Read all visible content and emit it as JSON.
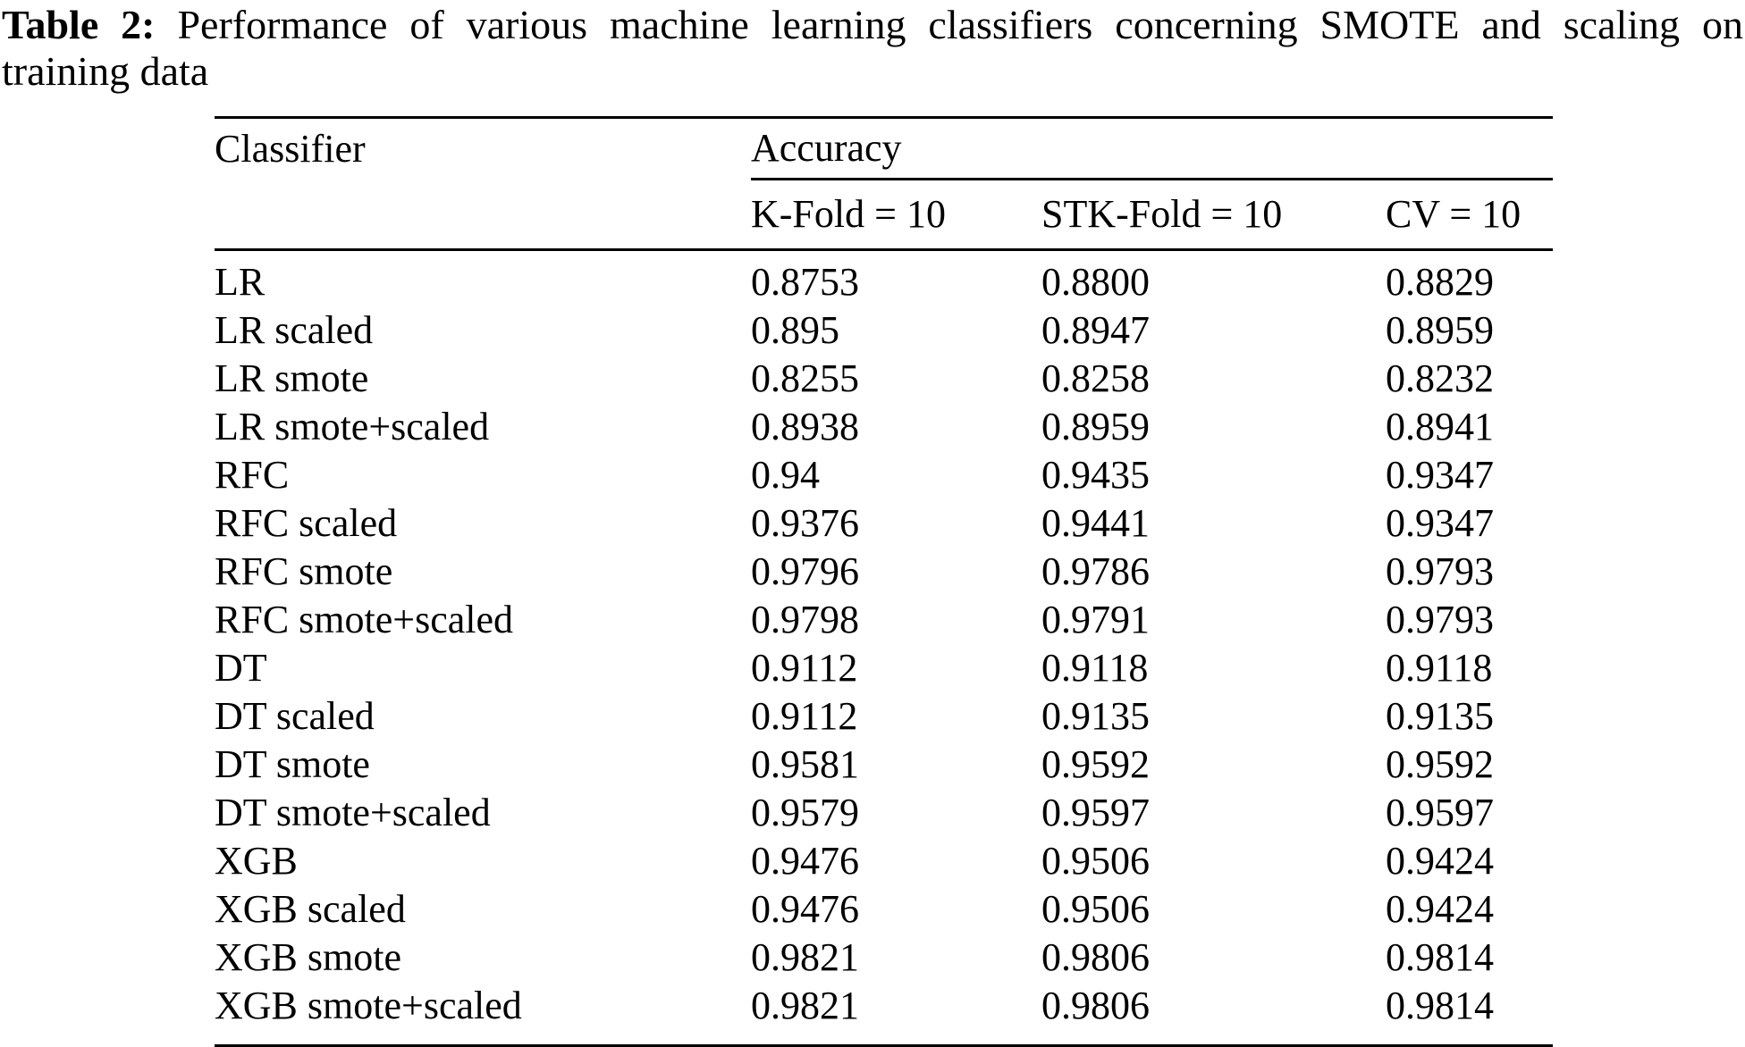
{
  "caption": {
    "label": "Table 2:",
    "line1": "Performance of various machine learning classifiers concerning SMOTE and scaling on",
    "line2": "training data"
  },
  "table": {
    "header": {
      "classifier": "Classifier",
      "accuracy": "Accuracy",
      "subcols": {
        "kfold": "K-Fold = 10",
        "stkfold": "STK-Fold = 10",
        "cv": "CV = 10"
      }
    },
    "rows": [
      {
        "classifier": "LR",
        "kfold": "0.8753",
        "stkfold": "0.8800",
        "cv": "0.8829"
      },
      {
        "classifier": "LR scaled",
        "kfold": "0.895",
        "stkfold": "0.8947",
        "cv": "0.8959"
      },
      {
        "classifier": "LR smote",
        "kfold": "0.8255",
        "stkfold": "0.8258",
        "cv": "0.8232"
      },
      {
        "classifier": "LR smote+scaled",
        "kfold": "0.8938",
        "stkfold": "0.8959",
        "cv": "0.8941"
      },
      {
        "classifier": "RFC",
        "kfold": "0.94",
        "stkfold": "0.9435",
        "cv": "0.9347"
      },
      {
        "classifier": "RFC scaled",
        "kfold": "0.9376",
        "stkfold": "0.9441",
        "cv": "0.9347"
      },
      {
        "classifier": "RFC smote",
        "kfold": "0.9796",
        "stkfold": "0.9786",
        "cv": "0.9793"
      },
      {
        "classifier": "RFC smote+scaled",
        "kfold": "0.9798",
        "stkfold": "0.9791",
        "cv": "0.9793"
      },
      {
        "classifier": "DT",
        "kfold": "0.9112",
        "stkfold": "0.9118",
        "cv": "0.9118"
      },
      {
        "classifier": "DT scaled",
        "kfold": "0.9112",
        "stkfold": "0.9135",
        "cv": "0.9135"
      },
      {
        "classifier": "DT smote",
        "kfold": "0.9581",
        "stkfold": "0.9592",
        "cv": "0.9592"
      },
      {
        "classifier": "DT smote+scaled",
        "kfold": "0.9579",
        "stkfold": "0.9597",
        "cv": "0.9597"
      },
      {
        "classifier": "XGB",
        "kfold": "0.9476",
        "stkfold": "0.9506",
        "cv": "0.9424"
      },
      {
        "classifier": "XGB scaled",
        "kfold": "0.9476",
        "stkfold": "0.9506",
        "cv": "0.9424"
      },
      {
        "classifier": "XGB smote",
        "kfold": "0.9821",
        "stkfold": "0.9806",
        "cv": "0.9814"
      },
      {
        "classifier": "XGB smote+scaled",
        "kfold": "0.9821",
        "stkfold": "0.9806",
        "cv": "0.9814"
      }
    ]
  }
}
